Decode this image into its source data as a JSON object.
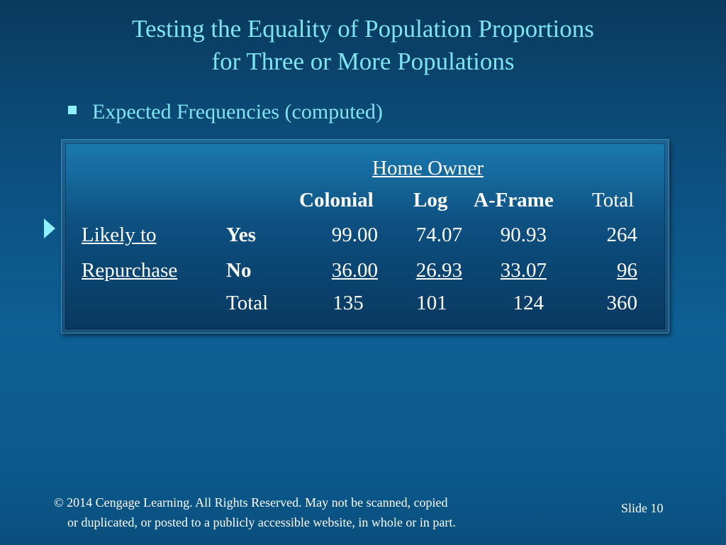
{
  "title": {
    "line1": "Testing the Equality of Population Proportions",
    "line2": "for Three or More Populations"
  },
  "bullet": {
    "text": "Expected Frequencies (computed)"
  },
  "table": {
    "group_header": "Home Owner",
    "columns": [
      "Colonial",
      "Log",
      "A-Frame",
      "Total"
    ],
    "row_group_label": [
      "Likely to",
      "Repurchase"
    ],
    "rows": [
      {
        "label": "Yes",
        "values": [
          "99.00",
          "74.07",
          "90.93",
          "264"
        ]
      },
      {
        "label": "No",
        "values": [
          "36.00",
          "26.93",
          "33.07",
          "96"
        ]
      },
      {
        "label": "Total",
        "values": [
          "135",
          "101",
          "124",
          "360"
        ]
      }
    ]
  },
  "footer": {
    "line1": "© 2014  Cengage Learning.  All Rights Reserved.  May not be scanned, copied",
    "line2": "or duplicated, or posted to a publicly accessible website, in whole or in part.",
    "slide_label": "Slide  10"
  },
  "colors": {
    "title": "#7fe4f0",
    "text": "#ffffff",
    "bullet": "#8ef0ff"
  }
}
